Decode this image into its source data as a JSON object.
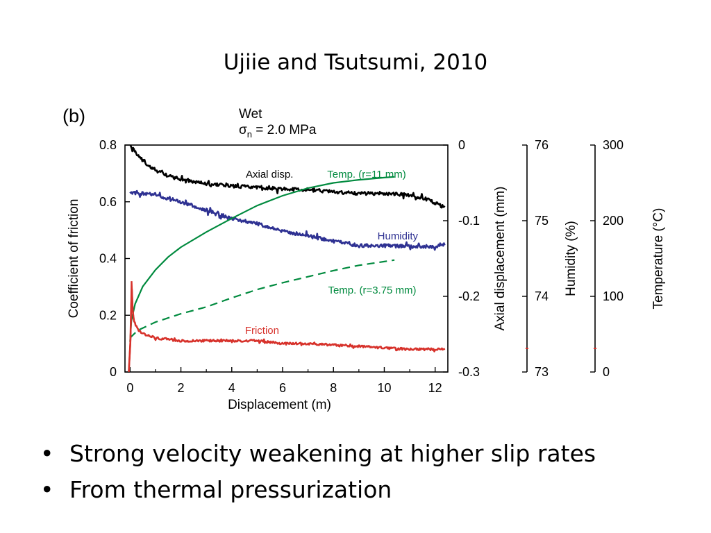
{
  "slide": {
    "title": "Ujiie and Tsutsumi, 2010",
    "bullets": [
      "Strong velocity weakening at higher slip rates",
      "From thermal pressurization"
    ],
    "bullet_glyph": "•"
  },
  "chart_data": {
    "type": "line",
    "panel_label": "(b)",
    "header": {
      "line1": "Wet",
      "sigma": "σ",
      "sub": "n",
      "rest": " = 2.0 MPa"
    },
    "xlabel": "Displacement (m)",
    "xlim": [
      -0.2,
      12.5
    ],
    "xticks": [
      0,
      2,
      4,
      6,
      8,
      10,
      12
    ],
    "grid": false,
    "axes": {
      "friction": {
        "label": "Coefficient of friction",
        "lim": [
          0,
          0.8
        ],
        "ticks": [
          "0",
          "0.2",
          "0.4",
          "0.6",
          "0.8"
        ],
        "tick_values": [
          0,
          0.2,
          0.4,
          0.6,
          0.8
        ]
      },
      "axial": {
        "label": "Axial displacement (mm)",
        "lim": [
          -0.3,
          0
        ],
        "ticks": [
          "0",
          "-0.1",
          "-0.2",
          "-0.3"
        ],
        "tick_values": [
          0,
          -0.1,
          -0.2,
          -0.3
        ]
      },
      "humidity": {
        "label": "Humidity (%)",
        "lim": [
          73,
          76
        ],
        "ticks": [
          "76",
          "75",
          "74",
          "73"
        ],
        "tick_values": [
          76,
          75,
          74,
          73
        ]
      },
      "temperature": {
        "label": "Temperature (°C)",
        "lim": [
          0,
          300
        ],
        "ticks": [
          "300",
          "200",
          "100",
          "0"
        ],
        "tick_values": [
          300,
          200,
          100,
          0
        ]
      }
    },
    "series": [
      {
        "name": "Axial disp.",
        "axis": "axial",
        "color": "#000000",
        "style": "noisy",
        "points": [
          [
            0,
            0
          ],
          [
            0.3,
            -0.013
          ],
          [
            0.6,
            -0.024
          ],
          [
            1,
            -0.033
          ],
          [
            1.5,
            -0.041
          ],
          [
            2,
            -0.045
          ],
          [
            3,
            -0.051
          ],
          [
            4,
            -0.054
          ],
          [
            5,
            -0.056
          ],
          [
            6,
            -0.058
          ],
          [
            7,
            -0.059
          ],
          [
            8,
            -0.062
          ],
          [
            9,
            -0.064
          ],
          [
            10,
            -0.064
          ],
          [
            11,
            -0.066
          ],
          [
            11.8,
            -0.073
          ],
          [
            12.4,
            -0.083
          ]
        ]
      },
      {
        "name": "Humidity",
        "axis": "humidity",
        "color": "#2e3192",
        "style": "noisy",
        "points": [
          [
            0,
            75.37
          ],
          [
            0.5,
            75.36
          ],
          [
            1,
            75.34
          ],
          [
            1.5,
            75.28
          ],
          [
            2,
            75.25
          ],
          [
            3,
            75.14
          ],
          [
            4,
            75.03
          ],
          [
            5,
            74.96
          ],
          [
            6,
            74.86
          ],
          [
            7,
            74.8
          ],
          [
            8,
            74.73
          ],
          [
            9,
            74.67
          ],
          [
            10,
            74.67
          ],
          [
            11,
            74.66
          ],
          [
            12,
            74.66
          ],
          [
            12.4,
            74.69
          ]
        ]
      },
      {
        "name": "Temp. (r=11 mm)",
        "axis": "temperature",
        "color": "#008a3e",
        "style": "solid",
        "points": [
          [
            0,
            40
          ],
          [
            0.05,
            68
          ],
          [
            0.2,
            90
          ],
          [
            0.5,
            113
          ],
          [
            1,
            135
          ],
          [
            1.5,
            152
          ],
          [
            2,
            165
          ],
          [
            3,
            185
          ],
          [
            4,
            203
          ],
          [
            5,
            220
          ],
          [
            6,
            233
          ],
          [
            7,
            243
          ],
          [
            8,
            250
          ],
          [
            9,
            254
          ],
          [
            10,
            257
          ],
          [
            10.4,
            258
          ]
        ]
      },
      {
        "name": "Temp. (r=3.75 mm)",
        "axis": "temperature",
        "color": "#008a3e",
        "style": "dashed",
        "points": [
          [
            0,
            45
          ],
          [
            0.3,
            55
          ],
          [
            1,
            66
          ],
          [
            2,
            77
          ],
          [
            3,
            86
          ],
          [
            4,
            98
          ],
          [
            5,
            109
          ],
          [
            6,
            118
          ],
          [
            7,
            126
          ],
          [
            8,
            134
          ],
          [
            9,
            141
          ],
          [
            10,
            146
          ],
          [
            10.4,
            148
          ]
        ]
      },
      {
        "name": "Friction",
        "axis": "friction",
        "color": "#d7322b",
        "style": "noisy",
        "points": [
          [
            -0.05,
            0
          ],
          [
            0.02,
            0.12
          ],
          [
            0.06,
            0.32
          ],
          [
            0.1,
            0.22
          ],
          [
            0.15,
            0.18
          ],
          [
            0.3,
            0.15
          ],
          [
            0.6,
            0.13
          ],
          [
            1,
            0.12
          ],
          [
            2,
            0.11
          ],
          [
            3,
            0.11
          ],
          [
            4,
            0.11
          ],
          [
            5,
            0.11
          ],
          [
            6,
            0.1
          ],
          [
            7,
            0.1
          ],
          [
            8,
            0.095
          ],
          [
            9,
            0.09
          ],
          [
            10,
            0.085
          ],
          [
            11,
            0.08
          ],
          [
            12,
            0.08
          ],
          [
            12.4,
            0.08
          ]
        ]
      }
    ],
    "annotations": [
      {
        "text": "Axial disp.",
        "color": "#000000"
      },
      {
        "text": "Temp. (r=11 mm)",
        "color": "#008a3e"
      },
      {
        "text": "Humidity",
        "color": "#2e3192"
      },
      {
        "text": "Temp. (r=3.75 mm)",
        "color": "#008a3e"
      },
      {
        "text": "Friction",
        "color": "#d7322b"
      }
    ]
  }
}
